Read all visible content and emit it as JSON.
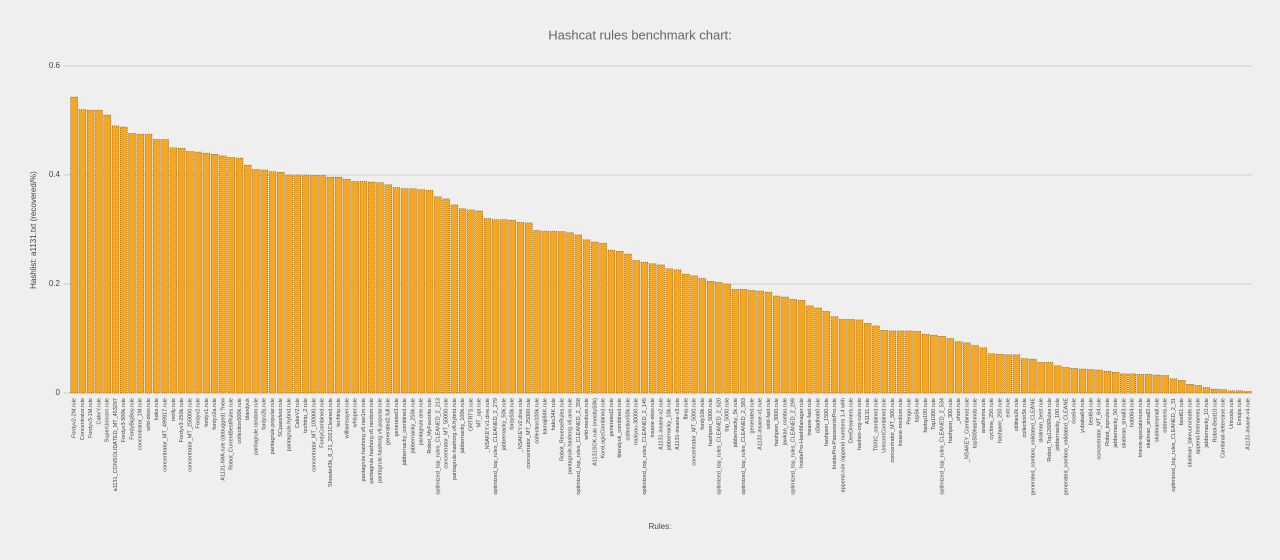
{
  "chart_data": {
    "type": "bar",
    "title": "Hashcat rules benchmark chart:",
    "x_label": "Rules:",
    "y_label": "Hashlist: a1131.txt  (recovered/%)",
    "color": "#f5a623",
    "ylim": [
      0,
      0.6
    ],
    "yticks": [
      0,
      0.2,
      0.4,
      0.6
    ],
    "grid": true,
    "categories": [
      "Fordyv2-2M.rule",
      "Concentrator.rule",
      "Fordyv3-1M.rule",
      "CakeY.rule",
      "SuperUnicorn.rule",
      "a1131_CONSOLIDATED_MT_453297",
      "Fordyv3-500k.rule",
      "FordyBigBoy.rule",
      "concentrator_1M.rule",
      "wild-slow.rule",
      "kaks.rule",
      "concentrator_MT_499817.rule",
      "molly.rule",
      "Fordyv3-250k.rule",
      "concentrator_MT_250000.rule",
      "Fordyv2.rule",
      "fordyv1.rule",
      "fordyv2a.rule",
      "A1131-IWA.rule (debugged) ?new",
      "Robot_CurrentBestRules.rule",
      "collection500k.rule",
      "blandyuk",
      "pantagrule.random.rule",
      "fordyv2b.rule",
      "pantagrule.popular.rule",
      "SCpassfest.rule",
      "pantagrule.hybrid.rule",
      "CakeV2.rule",
      "techtrip_2.rule",
      "concentrator_MT_100000.rule",
      "FordyCombined.rule",
      "Showterl3k_8_21_2021Cleaned.rule",
      "techtrip.rule",
      "williamsayer.rule",
      "whisper.rule",
      "pantagrule.hashorg.v6.raw1m.rule",
      "pantagrule.hashorg.v6.random.rule",
      "pantagrule.hashorg.v6.popular.rule",
      "generated2.full.rule",
      "generated3.rule",
      "jabbernacky_combined.rule",
      "jabbernacky_250k.rule",
      "pantagrule.one.rule",
      "Robot_MyFavorite.rule",
      "optimized_top_rules_CLEANED_2_213",
      "concentrator_MT_50000.rule",
      "pantagrule.hashorg.v6.hybrid.rule",
      "jabbernacky_100k.rule",
      "ORTRTS.rule",
      "MT_opt.rule",
      "_NSAKEY.v1.dive.rule",
      "optimized_top_rules_CLEANED_2_279",
      "jabbernacky_50k.rule",
      "fordy50k.rule",
      "_NSAKEY.v2.dive.rule",
      "concentrator_MT_25000.rule",
      "collection100k.rule",
      "kamaji84K.rule",
      "haku34K.rule",
      "Robot_ReverseRules.rule",
      "pantagrule.hashorg.v6.one.rule",
      "optimized_top_rules_CLEANED_2_358",
      "wild-medium.rule",
      "A1131SOK.rule (mostly50k)",
      "KoreLogicCombined.rule",
      "generated2.rule",
      "blandyuk_combined.rule",
      "collection50k.rule",
      "rockyou-30000.rule",
      "optimized_top_rules_CLEANED_2_145",
      "insane-slow.rule",
      "A1131-insane-v2.rule",
      "jabbernacky_10k.rule",
      "A1131-insane-v3.rule",
      "fbnp.rule",
      "concentrator_MT_5000.rule",
      "fordy10k.rule",
      "hashpwn_5000.rule",
      "optimized_top_rules_CLEANED_2_620",
      "top_5000.rule",
      "jabbernacky_5k.rule",
      "optimized_top_rules_CLEANED_2_583",
      "generated.rule",
      "A1131-insane-v1.rule",
      "wild-fast.rule",
      "hashpwn_3000.rule",
      "jawkan_combo.rule",
      "optimized_top_rules_CLEANED_2_299",
      "InsidePro-HashManager.rule",
      "insane-fast.rule",
      "d3adhob0.rule",
      "hashpwn_1500.rule",
      "InsidePro-PasswordsPro.rule",
      "append.rule (append numbers 1-4 with",
      "DeeDreamers.rule",
      "hashes-org-rules.rule",
      "A1131.rule",
      "T0XIC_combined.rule",
      "UnicornCombined.rule",
      "concentrator_MT_500.rule",
      "insane-medium.rule",
      "Pengo.rule",
      "top5k.rule",
      "fastsp100.rule",
      "Top1000.rule",
      "optimized_top_rules_CLEANED_2_534",
      "hashpwn_300.rule",
      "_short.rule",
      "_NSAKEY_Combined.rule",
      "top500hashmob.rule",
      "anathema.rule",
      "cyclone_250.rule",
      "hashpwn_250.rule",
      "extr.rule",
      "utilities2k.rule",
      "collection5k.rule",
      "generated_combos_validated_CLEANE",
      "skalman_best.rule",
      "Robot_Top1268Rules.rule",
      "jabbernacky_100.rule",
      "generated_combos_validated_CLEANE",
      "rise64.rule",
      "yubaba64.rule",
      "best64.rule",
      "concentrator_MT_64.rule",
      "Robot_toprules.rule",
      "jabbernacky_50.rule",
      "skalman_small3.rule",
      "hob064.rule",
      "tmesis-specialenum.rule",
      "skalman_small2.rule",
      "skalmansmall.rule",
      "oddevens.rule",
      "optimized_top_rules_CLEANED_2_31",
      "best61.rule",
      "skalman_takeuuronsafe.rule",
      "append-firstnames.rule",
      "jabbernacky_10.rule",
      "Robot-Best10.rule",
      "Combinat-lettercase.rule",
      "Unicode.rule",
      "Emojis.rule",
      "A1131-insane-v4.rule"
    ],
    "values": [
      0.543,
      0.52,
      0.519,
      0.519,
      0.51,
      0.49,
      0.488,
      0.476,
      0.475,
      0.475,
      0.465,
      0.465,
      0.45,
      0.449,
      0.443,
      0.442,
      0.44,
      0.438,
      0.435,
      0.432,
      0.431,
      0.418,
      0.41,
      0.409,
      0.406,
      0.405,
      0.4,
      0.4,
      0.4,
      0.399,
      0.399,
      0.396,
      0.396,
      0.392,
      0.388,
      0.388,
      0.387,
      0.386,
      0.382,
      0.377,
      0.375,
      0.375,
      0.373,
      0.372,
      0.36,
      0.356,
      0.345,
      0.338,
      0.336,
      0.334,
      0.32,
      0.318,
      0.318,
      0.317,
      0.313,
      0.312,
      0.298,
      0.297,
      0.297,
      0.296,
      0.294,
      0.29,
      0.281,
      0.277,
      0.275,
      0.262,
      0.26,
      0.255,
      0.243,
      0.24,
      0.237,
      0.235,
      0.228,
      0.226,
      0.218,
      0.215,
      0.21,
      0.205,
      0.203,
      0.2,
      0.19,
      0.19,
      0.188,
      0.187,
      0.185,
      0.178,
      0.176,
      0.172,
      0.17,
      0.16,
      0.156,
      0.15,
      0.14,
      0.135,
      0.135,
      0.134,
      0.128,
      0.123,
      0.115,
      0.114,
      0.114,
      0.114,
      0.113,
      0.108,
      0.106,
      0.104,
      0.1,
      0.094,
      0.092,
      0.087,
      0.083,
      0.072,
      0.071,
      0.07,
      0.07,
      0.063,
      0.062,
      0.056,
      0.056,
      0.05,
      0.047,
      0.045,
      0.044,
      0.043,
      0.042,
      0.04,
      0.038,
      0.035,
      0.035,
      0.034,
      0.034,
      0.033,
      0.032,
      0.026,
      0.023,
      0.016,
      0.014,
      0.01,
      0.007,
      0.006,
      0.004,
      0.004,
      0.003
    ]
  }
}
